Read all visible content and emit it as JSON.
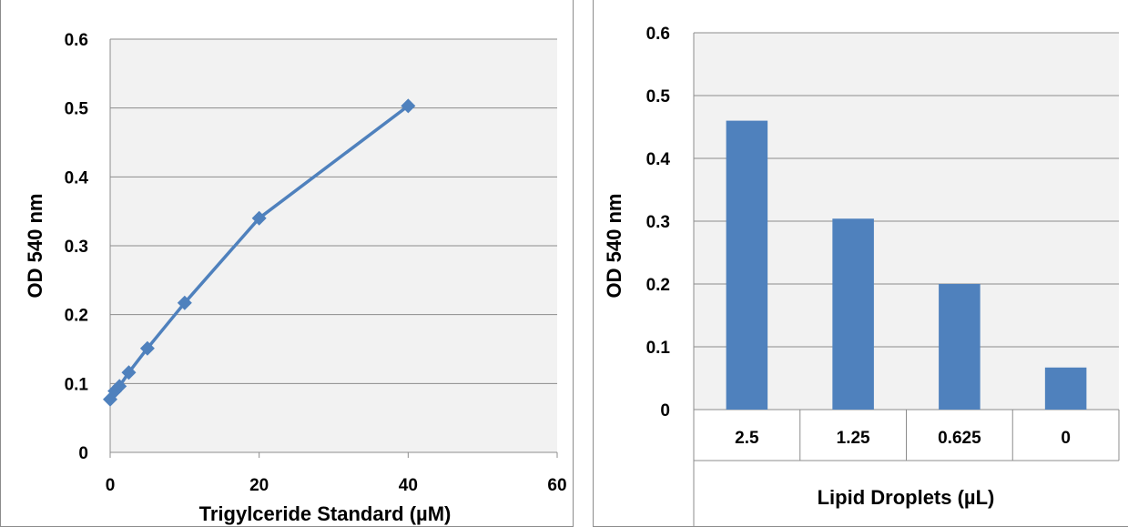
{
  "chart_data": [
    {
      "type": "scatter",
      "title": "",
      "xlabel": "Trigylceride Standard (µM)",
      "ylabel": "OD 540 nm",
      "xlim": [
        0,
        60
      ],
      "ylim": [
        0,
        0.6
      ],
      "xticks": [
        "0",
        "20",
        "40",
        "60"
      ],
      "yticks": [
        "0",
        "0.1",
        "0.2",
        "0.3",
        "0.4",
        "0.5",
        "0.6"
      ],
      "grid": true,
      "legend": "none",
      "series": [
        {
          "x": [
            0,
            0.625,
            1.25,
            2.5,
            5,
            10,
            20,
            40
          ],
          "y": [
            0.077,
            0.089,
            0.096,
            0.116,
            0.151,
            0.217,
            0.34,
            0.503
          ],
          "color": "#4f81bd",
          "marker": "diamond",
          "line": true
        }
      ]
    },
    {
      "type": "bar",
      "title": "",
      "xlabel": "Lipid Droplets (µL)",
      "ylabel": "OD 540 nm",
      "ylim": [
        0,
        0.6
      ],
      "yticks": [
        "0",
        "0.1",
        "0.2",
        "0.3",
        "0.4",
        "0.5",
        "0.6"
      ],
      "grid": true,
      "legend": "none",
      "categories": [
        "2.5",
        "1.25",
        "0.625",
        "0"
      ],
      "values": [
        0.46,
        0.304,
        0.2,
        0.067
      ],
      "color": "#4f81bd"
    }
  ]
}
